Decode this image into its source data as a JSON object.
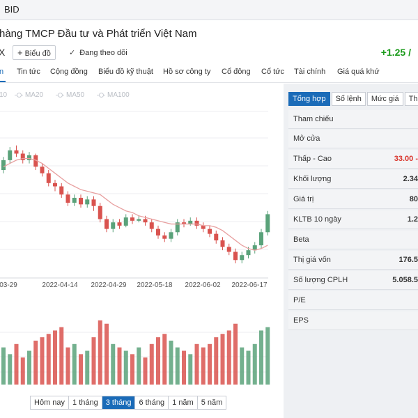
{
  "app": {
    "symbol": "BID"
  },
  "company": {
    "title": "hàng TMCP Đầu tư và Phát triển Việt Nam",
    "exchange": "X"
  },
  "actions": {
    "add_chart_label": "Biểu đồ",
    "follow_label": "Đang theo dõi"
  },
  "price": {
    "change": "+1.25 /"
  },
  "tabs": [
    "n",
    "Tin tức",
    "Cộng đồng",
    "Biểu đồ kỹ thuật",
    "Hồ sơ công ty",
    "Cổ đông",
    "Cổ tức",
    "Tài chính",
    "Giá quá khứ"
  ],
  "ma_legend": [
    "10",
    "MA20",
    "MA50",
    "MA100"
  ],
  "ranges": {
    "items": [
      "Hôm nay",
      "1 tháng",
      "3 tháng",
      "6 tháng",
      "1 năm",
      "5 năm"
    ],
    "active": "3 tháng"
  },
  "side_tabs": [
    "Tổng hợp",
    "Sổ lệnh",
    "Mức giá",
    "Th"
  ],
  "stats": [
    {
      "label": "Tham chiếu",
      "value": ""
    },
    {
      "label": "Mở cửa",
      "value": ""
    },
    {
      "label": "Thấp - Cao",
      "value": "33.00  -"
    },
    {
      "label": "Khối lượng",
      "value": "2.34"
    },
    {
      "label": "Giá trị",
      "value": "80"
    },
    {
      "label": "KLTB 10 ngày",
      "value": "1.2"
    },
    {
      "label": "Beta",
      "value": ""
    },
    {
      "label": "Thị giá vốn",
      "value": "176.5"
    },
    {
      "label": "Số lượng CPLH",
      "value": "5.058.5"
    },
    {
      "label": "P/E",
      "value": ""
    },
    {
      "label": "EPS",
      "value": ""
    }
  ],
  "colors": {
    "up": "#5aa27a",
    "down": "#d9534f",
    "ma": "#e8a0a0",
    "accent": "#1a6bb8",
    "change": "#1a9a1a"
  },
  "chart_data": {
    "type": "candlestick",
    "x_ticks": [
      "03-29",
      "2022-04-14",
      "2022-04-29",
      "2022-05-18",
      "2022-06-02",
      "2022-06-17"
    ],
    "candles": [
      {
        "o": 0.6,
        "c": 0.66,
        "h": 0.68,
        "l": 0.58
      },
      {
        "o": 0.66,
        "c": 0.72,
        "h": 0.74,
        "l": 0.64
      },
      {
        "o": 0.72,
        "c": 0.7,
        "h": 0.75,
        "l": 0.68
      },
      {
        "o": 0.7,
        "c": 0.66,
        "h": 0.72,
        "l": 0.64
      },
      {
        "o": 0.66,
        "c": 0.69,
        "h": 0.71,
        "l": 0.64
      },
      {
        "o": 0.69,
        "c": 0.62,
        "h": 0.7,
        "l": 0.6
      },
      {
        "o": 0.62,
        "c": 0.58,
        "h": 0.64,
        "l": 0.56
      },
      {
        "o": 0.58,
        "c": 0.52,
        "h": 0.6,
        "l": 0.5
      },
      {
        "o": 0.52,
        "c": 0.5,
        "h": 0.54,
        "l": 0.47
      },
      {
        "o": 0.5,
        "c": 0.45,
        "h": 0.52,
        "l": 0.43
      },
      {
        "o": 0.45,
        "c": 0.4,
        "h": 0.47,
        "l": 0.38
      },
      {
        "o": 0.4,
        "c": 0.43,
        "h": 0.45,
        "l": 0.38
      },
      {
        "o": 0.43,
        "c": 0.39,
        "h": 0.45,
        "l": 0.37
      },
      {
        "o": 0.39,
        "c": 0.42,
        "h": 0.44,
        "l": 0.37
      },
      {
        "o": 0.42,
        "c": 0.38,
        "h": 0.44,
        "l": 0.35
      },
      {
        "o": 0.38,
        "c": 0.3,
        "h": 0.4,
        "l": 0.28
      },
      {
        "o": 0.3,
        "c": 0.24,
        "h": 0.32,
        "l": 0.22
      },
      {
        "o": 0.24,
        "c": 0.28,
        "h": 0.3,
        "l": 0.22
      },
      {
        "o": 0.28,
        "c": 0.26,
        "h": 0.3,
        "l": 0.24
      },
      {
        "o": 0.26,
        "c": 0.31,
        "h": 0.33,
        "l": 0.25
      },
      {
        "o": 0.31,
        "c": 0.29,
        "h": 0.33,
        "l": 0.27
      },
      {
        "o": 0.29,
        "c": 0.3,
        "h": 0.32,
        "l": 0.28
      },
      {
        "o": 0.3,
        "c": 0.28,
        "h": 0.32,
        "l": 0.26
      },
      {
        "o": 0.28,
        "c": 0.24,
        "h": 0.3,
        "l": 0.22
      },
      {
        "o": 0.24,
        "c": 0.2,
        "h": 0.26,
        "l": 0.18
      },
      {
        "o": 0.2,
        "c": 0.18,
        "h": 0.22,
        "l": 0.16
      },
      {
        "o": 0.18,
        "c": 0.22,
        "h": 0.24,
        "l": 0.16
      },
      {
        "o": 0.22,
        "c": 0.28,
        "h": 0.3,
        "l": 0.2
      },
      {
        "o": 0.28,
        "c": 0.27,
        "h": 0.3,
        "l": 0.25
      },
      {
        "o": 0.27,
        "c": 0.29,
        "h": 0.31,
        "l": 0.26
      },
      {
        "o": 0.29,
        "c": 0.26,
        "h": 0.31,
        "l": 0.24
      },
      {
        "o": 0.26,
        "c": 0.24,
        "h": 0.28,
        "l": 0.22
      },
      {
        "o": 0.24,
        "c": 0.21,
        "h": 0.26,
        "l": 0.19
      },
      {
        "o": 0.21,
        "c": 0.17,
        "h": 0.23,
        "l": 0.15
      },
      {
        "o": 0.17,
        "c": 0.13,
        "h": 0.19,
        "l": 0.11
      },
      {
        "o": 0.13,
        "c": 0.1,
        "h": 0.15,
        "l": 0.08
      },
      {
        "o": 0.1,
        "c": 0.05,
        "h": 0.12,
        "l": 0.03
      },
      {
        "o": 0.05,
        "c": 0.08,
        "h": 0.1,
        "l": 0.03
      },
      {
        "o": 0.08,
        "c": 0.11,
        "h": 0.13,
        "l": 0.06
      },
      {
        "o": 0.11,
        "c": 0.14,
        "h": 0.16,
        "l": 0.09
      },
      {
        "o": 0.14,
        "c": 0.22,
        "h": 0.24,
        "l": 0.12
      },
      {
        "o": 0.22,
        "c": 0.33,
        "h": 0.35,
        "l": 0.2
      }
    ],
    "ma": [
      0.62,
      0.64,
      0.66,
      0.67,
      0.67,
      0.66,
      0.64,
      0.61,
      0.58,
      0.55,
      0.52,
      0.5,
      0.48,
      0.47,
      0.46,
      0.45,
      0.42,
      0.39,
      0.37,
      0.35,
      0.34,
      0.32,
      0.31,
      0.3,
      0.29,
      0.28,
      0.27,
      0.27,
      0.27,
      0.27,
      0.27,
      0.26,
      0.26,
      0.25,
      0.23,
      0.2,
      0.17,
      0.14,
      0.12,
      0.11,
      0.12,
      0.14
    ],
    "volume": [
      0.55,
      0.45,
      0.6,
      0.4,
      0.5,
      0.65,
      0.7,
      0.75,
      0.8,
      0.85,
      0.55,
      0.6,
      0.45,
      0.5,
      0.7,
      0.95,
      0.9,
      0.6,
      0.55,
      0.5,
      0.45,
      0.55,
      0.4,
      0.6,
      0.7,
      0.75,
      0.65,
      0.55,
      0.5,
      0.45,
      0.6,
      0.55,
      0.6,
      0.7,
      0.75,
      0.8,
      0.9,
      0.55,
      0.5,
      0.6,
      0.8,
      0.85
    ]
  }
}
